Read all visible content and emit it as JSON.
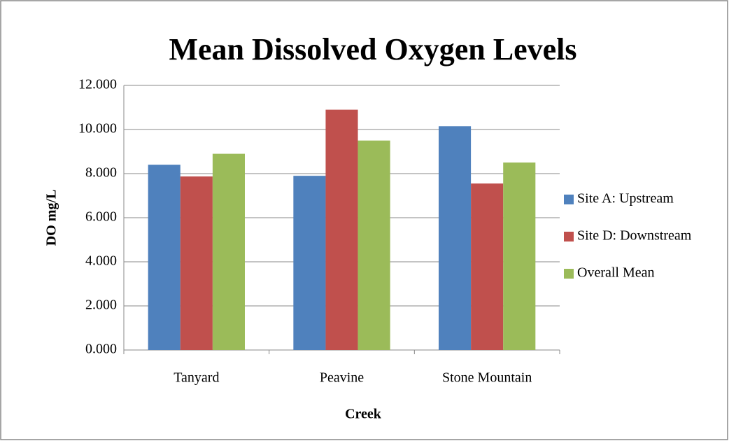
{
  "chart_data": {
    "type": "bar",
    "title": "Mean Dissolved Oxygen Levels",
    "y_label": "DO mg/L",
    "x_label": "Creek",
    "categories": [
      "Tanyard",
      "Peavine",
      "Stone Mountain"
    ],
    "series": [
      {
        "name": "Site A: Upstream",
        "color": "#4f81bd",
        "values": [
          8.4,
          7.9,
          10.15
        ]
      },
      {
        "name": "Site D: Downstream",
        "color": "#c0504d",
        "values": [
          7.87,
          10.9,
          7.55
        ]
      },
      {
        "name": "Overall Mean",
        "color": "#9bbb59",
        "values": [
          8.9,
          9.5,
          8.5
        ]
      }
    ],
    "ylim": [
      0,
      12
    ],
    "yticks": [
      {
        "value": 0,
        "label": "0.000"
      },
      {
        "value": 2,
        "label": "2.000"
      },
      {
        "value": 4,
        "label": "4.000"
      },
      {
        "value": 6,
        "label": "6.000"
      },
      {
        "value": 8,
        "label": "8.000"
      },
      {
        "value": 10,
        "label": "10.000"
      },
      {
        "value": 12,
        "label": "12.000"
      }
    ],
    "grid": true,
    "legend": "right"
  }
}
